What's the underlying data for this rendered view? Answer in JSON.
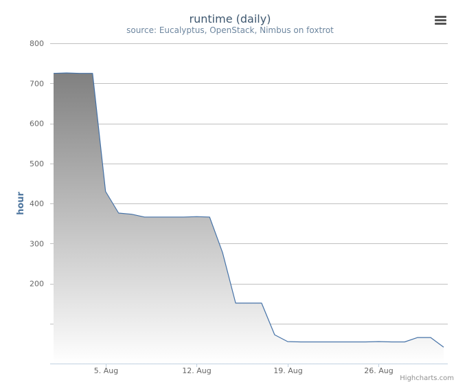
{
  "chart_data": {
    "type": "area",
    "title": "runtime (daily)",
    "subtitle": "source: Eucalyptus, OpenStack, Nimbus on foxtrot",
    "ylabel": "hour",
    "xlabel": "",
    "ylim": [
      0,
      800
    ],
    "yticks": [
      {
        "value": 200,
        "label": "200"
      },
      {
        "value": 300,
        "label": "300"
      },
      {
        "value": 400,
        "label": "400"
      },
      {
        "value": 500,
        "label": "500"
      },
      {
        "value": 600,
        "label": "600"
      },
      {
        "value": 700,
        "label": "700"
      },
      {
        "value": 800,
        "label": "800"
      }
    ],
    "gridlines": [
      100,
      200,
      300,
      400,
      500,
      600,
      700,
      800
    ],
    "xlim": [
      "2014-08-01",
      "2014-08-31"
    ],
    "xticks": [
      {
        "date": "2014-08-05",
        "label": "5. Aug"
      },
      {
        "date": "2014-08-12",
        "label": "12. Aug"
      },
      {
        "date": "2014-08-19",
        "label": "19. Aug"
      },
      {
        "date": "2014-08-26",
        "label": "26. Aug"
      }
    ],
    "grid": true,
    "legend": "none",
    "series": [
      {
        "points": [
          {
            "x": "2014-08-01",
            "y": 725
          },
          {
            "x": "2014-08-02",
            "y": 726
          },
          {
            "x": "2014-08-03",
            "y": 725
          },
          {
            "x": "2014-08-04",
            "y": 725
          },
          {
            "x": "2014-08-05",
            "y": 430
          },
          {
            "x": "2014-08-06",
            "y": 376
          },
          {
            "x": "2014-08-07",
            "y": 373
          },
          {
            "x": "2014-08-08",
            "y": 366
          },
          {
            "x": "2014-08-09",
            "y": 366
          },
          {
            "x": "2014-08-10",
            "y": 366
          },
          {
            "x": "2014-08-11",
            "y": 366
          },
          {
            "x": "2014-08-12",
            "y": 367
          },
          {
            "x": "2014-08-13",
            "y": 366
          },
          {
            "x": "2014-08-14",
            "y": 277
          },
          {
            "x": "2014-08-15",
            "y": 151
          },
          {
            "x": "2014-08-16",
            "y": 151
          },
          {
            "x": "2014-08-17",
            "y": 151
          },
          {
            "x": "2014-08-18",
            "y": 72
          },
          {
            "x": "2014-08-19",
            "y": 55
          },
          {
            "x": "2014-08-20",
            "y": 54
          },
          {
            "x": "2014-08-21",
            "y": 54
          },
          {
            "x": "2014-08-22",
            "y": 54
          },
          {
            "x": "2014-08-23",
            "y": 54
          },
          {
            "x": "2014-08-24",
            "y": 54
          },
          {
            "x": "2014-08-25",
            "y": 54
          },
          {
            "x": "2014-08-26",
            "y": 55
          },
          {
            "x": "2014-08-27",
            "y": 54
          },
          {
            "x": "2014-08-28",
            "y": 54
          },
          {
            "x": "2014-08-29",
            "y": 65
          },
          {
            "x": "2014-08-30",
            "y": 65
          },
          {
            "x": "2014-08-31",
            "y": 41
          }
        ]
      }
    ],
    "colors": {
      "line": "#4572a7",
      "fill_top": "#808080",
      "fill_bottom": "#ffffff",
      "grid": "#c0c0c0",
      "title": "#3e576f",
      "subtitle": "#6d869f",
      "axis_label": "#4d759e",
      "tick_label": "#666666",
      "axis_line": "#c0d0e0",
      "credits": "#909090",
      "menu": "#555555"
    }
  },
  "export_menu": {
    "icon": "menu-icon"
  },
  "credits": {
    "text": "Highcharts.com"
  }
}
